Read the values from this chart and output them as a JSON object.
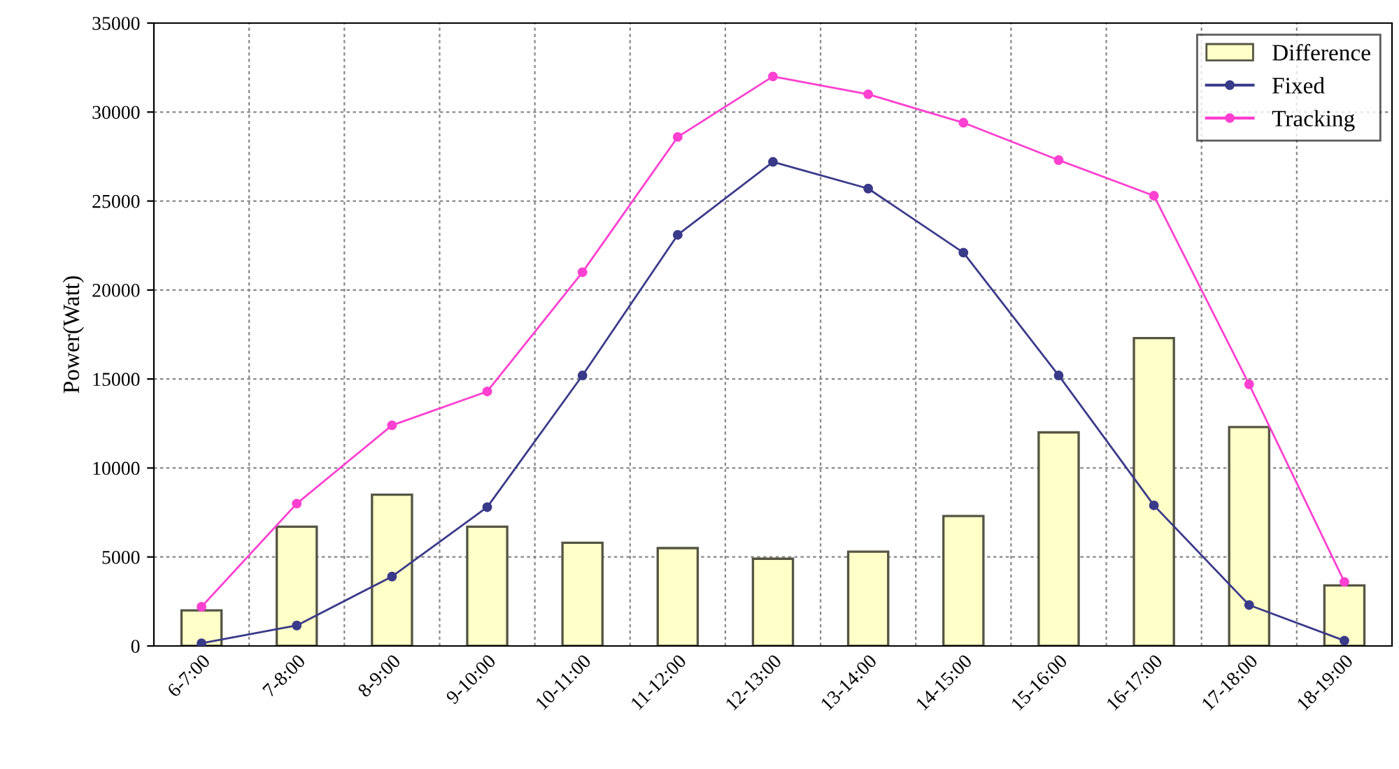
{
  "chart_data": {
    "type": "bar",
    "ylabel": "Power(Watt)",
    "categories": [
      "6-7:00",
      "7-8:00",
      "8-9:00",
      "9-10:00",
      "10-11:00",
      "11-12:00",
      "12-13:00",
      "13-14:00",
      "14-15:00",
      "15-16:00",
      "16-17:00",
      "17-18:00",
      "18-19:00"
    ],
    "series": [
      {
        "name": "Difference",
        "color": "#ffffc8",
        "values": [
          2000,
          6700,
          8500,
          6700,
          5800,
          5500,
          4900,
          5300,
          7300,
          12000,
          17300,
          12300,
          3400
        ]
      },
      {
        "name": "Fixed",
        "type": "line",
        "color": "#3a3a8a",
        "values": [
          150,
          1150,
          3900,
          7800,
          15200,
          23100,
          27200,
          25700,
          22100,
          15200,
          7900,
          2300,
          300
        ]
      },
      {
        "name": "Tracking",
        "type": "line",
        "color": "#ff40d0",
        "values": [
          2200,
          8000,
          12400,
          14300,
          21000,
          28600,
          32000,
          31000,
          29400,
          27300,
          25300,
          14700,
          3600
        ]
      }
    ],
    "ylim": [
      0,
      35000
    ],
    "yticks": [
      0,
      5000,
      10000,
      15000,
      20000,
      25000,
      30000,
      35000
    ],
    "grid": true,
    "legend": "top right",
    "marker": "circle",
    "line_style": "solid"
  }
}
